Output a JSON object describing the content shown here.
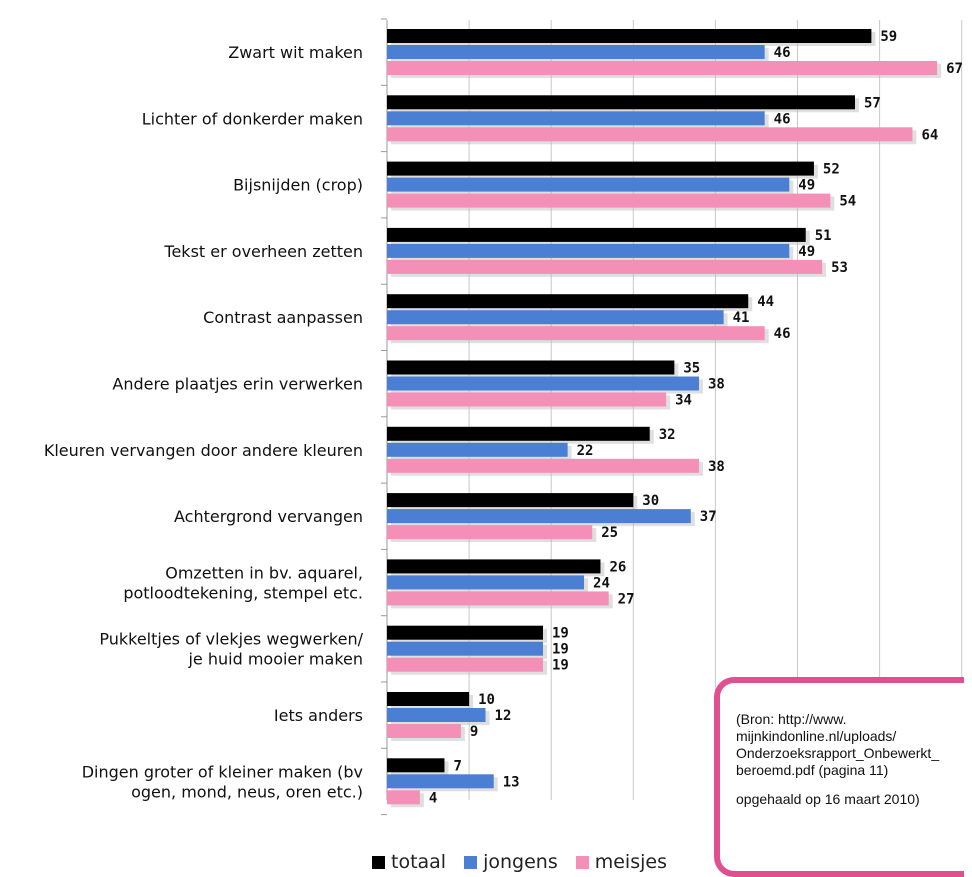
{
  "chart_data": {
    "type": "bar",
    "orientation": "horizontal",
    "categories": [
      "Zwart wit maken",
      "Lichter of donkerder maken",
      "Bijsnijden (crop)",
      "Tekst er overheen zetten",
      "Contrast aanpassen",
      "Andere plaatjes erin verwerken",
      "Kleuren vervangen door andere kleuren",
      "Achtergrond vervangen",
      "Omzetten in bv. aquarel,\npotloodtekening, stempel etc.",
      "Pukkeltjes of vlekjes wegwerken/\nje huid mooier maken",
      "Iets anders",
      "Dingen groter of kleiner maken (bv\nogen, mond, neus, oren etc.)"
    ],
    "series": [
      {
        "name": "totaal",
        "color": "#000000",
        "values": [
          59,
          57,
          52,
          51,
          44,
          35,
          32,
          30,
          26,
          19,
          10,
          7
        ]
      },
      {
        "name": "jongens",
        "color": "#4a7fd4",
        "values": [
          46,
          46,
          49,
          49,
          41,
          38,
          22,
          37,
          24,
          19,
          12,
          13
        ]
      },
      {
        "name": "meisjes",
        "color": "#f48fb8",
        "values": [
          67,
          64,
          54,
          53,
          46,
          34,
          38,
          25,
          27,
          19,
          9,
          4
        ]
      }
    ],
    "xlim": [
      0,
      70
    ],
    "grid": true,
    "legend": "bottom"
  },
  "source": {
    "lines": [
      "(Bron: http://www.\nmijnkindonline.nl/uploads/\nOnderzoeksrapport_Onbewerkt_\nberoemd.pdf (pagina 11)",
      "opgehaald op 16 maart 2010)"
    ]
  }
}
